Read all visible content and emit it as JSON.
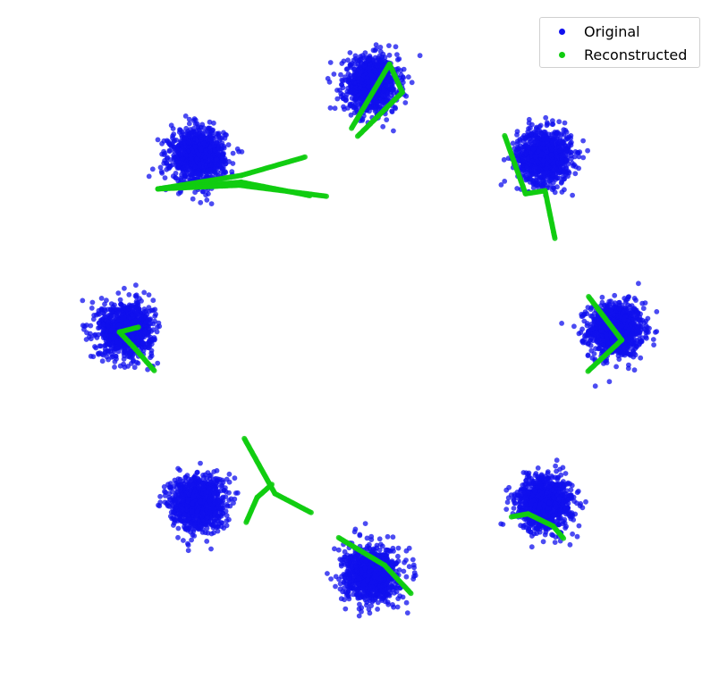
{
  "chart_data": {
    "type": "scatter",
    "title": "",
    "xlabel": "",
    "ylabel": "",
    "axes_visible": false,
    "grid": false,
    "legend_placement": "top-right",
    "xlim": [
      -4.6,
      4.6
    ],
    "ylim": [
      -4.6,
      4.6
    ],
    "colors": {
      "Original": "#1010ee",
      "Reconstructed": "#10cc10"
    },
    "series": [
      {
        "name": "Original",
        "cluster_centers": [
          [
            4.0,
            0.0
          ],
          [
            2.83,
            2.83
          ],
          [
            0.0,
            4.0
          ],
          [
            -2.83,
            2.83
          ],
          [
            -4.0,
            0.0
          ],
          [
            -2.83,
            -2.83
          ],
          [
            0.0,
            -4.0
          ],
          [
            2.83,
            -2.83
          ]
        ],
        "cluster_spread_std": 0.22,
        "points_per_cluster": 1000
      },
      {
        "name": "Reconstructed",
        "polylines": [
          [
            [
              -0.32,
              3.29
            ],
            [
              0.3,
              4.34
            ],
            [
              0.51,
              3.88
            ],
            [
              -0.22,
              3.16
            ]
          ],
          [
            [
              3.14,
              -3.41
            ],
            [
              2.97,
              -3.21
            ],
            [
              2.56,
              -3.01
            ],
            [
              2.29,
              -3.06
            ]
          ],
          [
            [
              2.18,
              3.17
            ],
            [
              2.52,
              2.22
            ],
            [
              2.84,
              2.27
            ],
            [
              3.0,
              1.49
            ]
          ],
          [
            [
              3.55,
              0.54
            ],
            [
              4.09,
              -0.17
            ],
            [
              3.54,
              -0.68
            ]
          ],
          [
            [
              -2.07,
              -1.78
            ],
            [
              -1.57,
              -2.68
            ],
            [
              -0.98,
              -2.99
            ]
          ],
          [
            [
              -1.62,
              -2.53
            ],
            [
              -1.86,
              -2.74
            ],
            [
              -2.04,
              -3.15
            ]
          ],
          [
            [
              -3.54,
              -0.67
            ],
            [
              -3.88,
              -0.28
            ],
            [
              -4.11,
              -0.04
            ],
            [
              -3.8,
              0.04
            ]
          ],
          [
            [
              -0.53,
              -3.4
            ],
            [
              0.22,
              -3.85
            ],
            [
              0.65,
              -4.31
            ]
          ],
          [
            [
              -3.48,
              2.3
            ],
            [
              -2.12,
              2.52
            ],
            [
              -1.08,
              2.82
            ]
          ],
          [
            [
              -3.48,
              2.3
            ],
            [
              -2.12,
              2.41
            ],
            [
              -1.0,
              2.19
            ]
          ],
          [
            [
              -3.48,
              2.3
            ],
            [
              -2.15,
              2.36
            ],
            [
              -0.73,
              2.18
            ]
          ]
        ]
      }
    ]
  },
  "legend": {
    "original_label": "Original",
    "reconstructed_label": "Reconstructed",
    "original_color": "#1010ee",
    "reconstructed_color": "#10cc10"
  }
}
